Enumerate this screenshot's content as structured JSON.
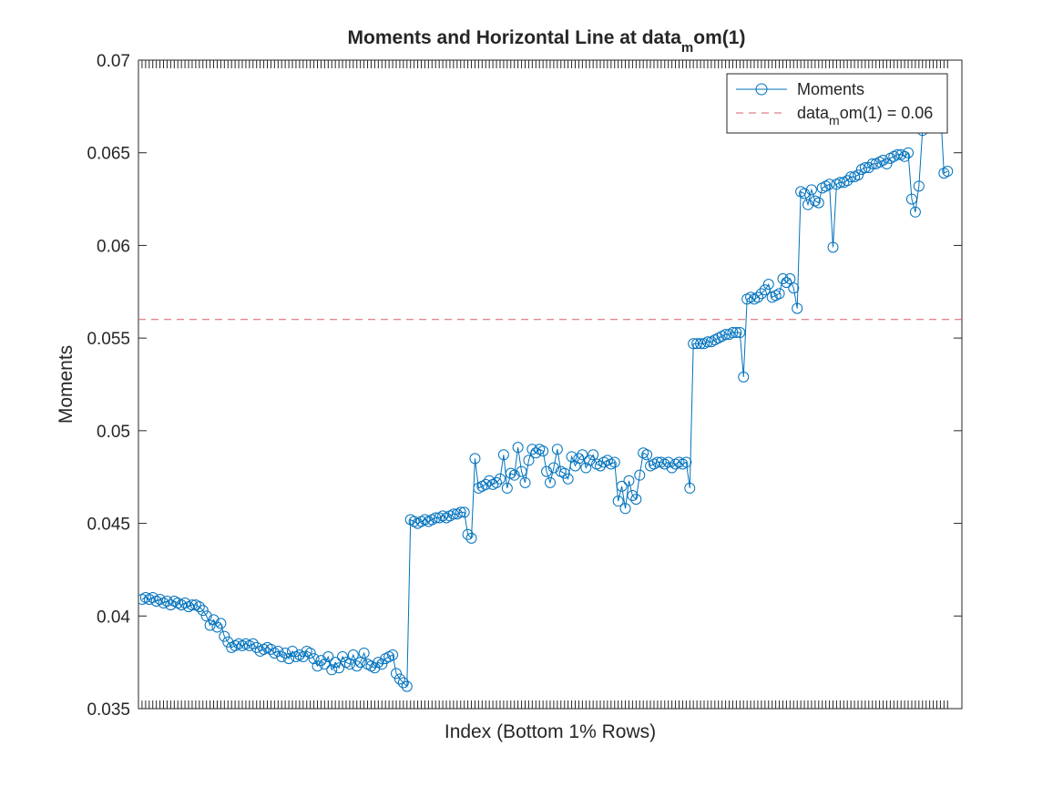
{
  "colors": {
    "series": "#0072bd",
    "reference": "#d95f6a",
    "axes": "#262626",
    "background": "#ffffff"
  },
  "chart_data": {
    "type": "line",
    "title_main": "Moments and Horizontal Line at data",
    "title_sub": "m",
    "title_tail": "om(1)",
    "xlabel": "Index (Bottom 1% Rows)",
    "ylabel": "Moments",
    "ylim": [
      0.035,
      0.07
    ],
    "yticks": [
      0.035,
      0.04,
      0.045,
      0.05,
      0.055,
      0.06,
      0.065,
      0.07
    ],
    "ytick_labels": [
      "0.035",
      "0.04",
      "0.045",
      "0.05",
      "0.055",
      "0.06",
      "0.065",
      "0.07"
    ],
    "xlim": [
      0,
      230
    ],
    "marker": "circle",
    "legend": {
      "position": "top-right",
      "series_label": "Moments",
      "ref_main": "data",
      "ref_sub": "m",
      "ref_tail": "om(1) = 0.06"
    },
    "reference_line": {
      "y": 0.056,
      "style": "dashed"
    },
    "series": [
      {
        "name": "Moments",
        "values": [
          0.0409,
          0.041,
          0.0409,
          0.041,
          0.0408,
          0.0409,
          0.0407,
          0.0408,
          0.0406,
          0.0408,
          0.0407,
          0.0406,
          0.0407,
          0.0405,
          0.0406,
          0.0406,
          0.0405,
          0.0403,
          0.04,
          0.0395,
          0.0398,
          0.0394,
          0.0396,
          0.0389,
          0.0386,
          0.0383,
          0.0384,
          0.0385,
          0.0384,
          0.0385,
          0.0384,
          0.0385,
          0.0383,
          0.0381,
          0.0382,
          0.0383,
          0.0382,
          0.038,
          0.0381,
          0.0378,
          0.038,
          0.0377,
          0.0381,
          0.0378,
          0.0379,
          0.0378,
          0.0381,
          0.038,
          0.0377,
          0.0373,
          0.0376,
          0.0374,
          0.0378,
          0.0371,
          0.0375,
          0.0372,
          0.0378,
          0.0375,
          0.0374,
          0.0379,
          0.0373,
          0.0375,
          0.038,
          0.0374,
          0.0373,
          0.0372,
          0.0375,
          0.0374,
          0.0377,
          0.0378,
          0.0379,
          0.0369,
          0.0366,
          0.0364,
          0.0362,
          0.0452,
          0.0451,
          0.045,
          0.0451,
          0.0452,
          0.0451,
          0.0452,
          0.0453,
          0.0453,
          0.0454,
          0.0453,
          0.0454,
          0.0455,
          0.0455,
          0.0456,
          0.0456,
          0.0444,
          0.0442,
          0.0485,
          0.0469,
          0.047,
          0.0471,
          0.0473,
          0.0471,
          0.0472,
          0.0474,
          0.0487,
          0.0469,
          0.0477,
          0.0476,
          0.0491,
          0.0478,
          0.0472,
          0.0484,
          0.049,
          0.0488,
          0.049,
          0.0489,
          0.0478,
          0.0472,
          0.048,
          0.049,
          0.0478,
          0.0477,
          0.0474,
          0.0486,
          0.0481,
          0.0485,
          0.0487,
          0.048,
          0.0484,
          0.0487,
          0.0482,
          0.0481,
          0.0483,
          0.0484,
          0.0482,
          0.0483,
          0.0462,
          0.047,
          0.0458,
          0.0473,
          0.0465,
          0.0463,
          0.0476,
          0.0488,
          0.0487,
          0.0481,
          0.0482,
          0.0483,
          0.0483,
          0.0482,
          0.0483,
          0.048,
          0.0482,
          0.0483,
          0.0482,
          0.0483,
          0.0469,
          0.0547,
          0.0547,
          0.0547,
          0.0547,
          0.0548,
          0.0548,
          0.0549,
          0.055,
          0.0551,
          0.0552,
          0.0552,
          0.0553,
          0.0553,
          0.0553,
          0.0529,
          0.0571,
          0.0572,
          0.0571,
          0.0572,
          0.0574,
          0.0576,
          0.0579,
          0.0572,
          0.0573,
          0.0574,
          0.0582,
          0.058,
          0.0582,
          0.0577,
          0.0566,
          0.0629,
          0.0628,
          0.0622,
          0.063,
          0.0624,
          0.0623,
          0.0631,
          0.0632,
          0.0633,
          0.0599,
          0.0633,
          0.0634,
          0.0634,
          0.0635,
          0.0637,
          0.0637,
          0.0638,
          0.0641,
          0.0642,
          0.0642,
          0.0644,
          0.0644,
          0.0645,
          0.0646,
          0.0644,
          0.0647,
          0.0648,
          0.0649,
          0.0649,
          0.0648,
          0.065,
          0.0625,
          0.0618,
          0.0632,
          0.0662,
          0.0672,
          0.0675,
          0.0679,
          0.0678,
          0.0674,
          0.0639,
          0.064
        ]
      }
    ]
  }
}
